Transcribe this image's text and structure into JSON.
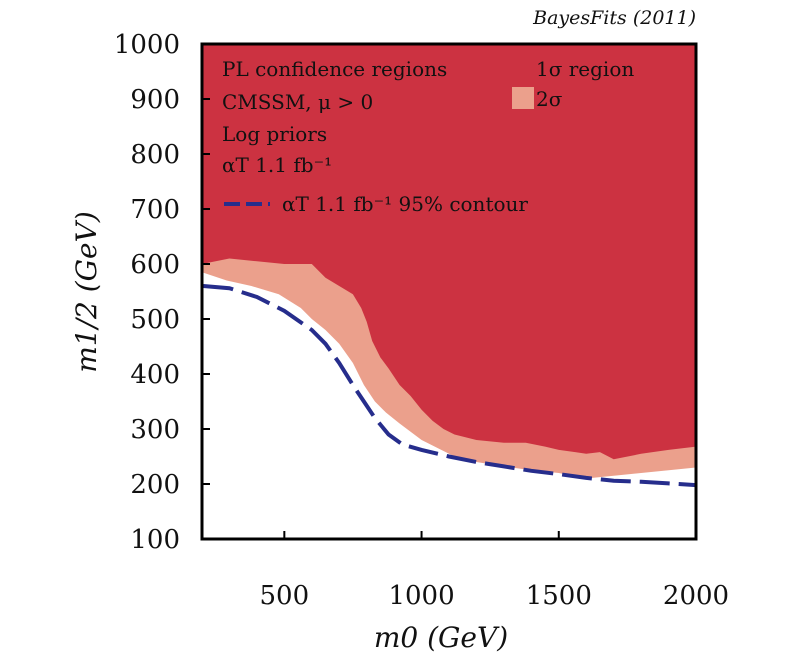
{
  "chart_data": {
    "type": "area",
    "title": "",
    "credit": "BayesFits (2011)",
    "xlabel": "m0 (GeV)",
    "ylabel": "m1/2 (GeV)",
    "xlim": [
      200,
      2000
    ],
    "ylim": [
      100,
      1000
    ],
    "x_ticks": [
      "500",
      "1000",
      "1500",
      "2000"
    ],
    "y_ticks": [
      "100",
      "200",
      "300",
      "400",
      "500",
      "600",
      "700",
      "800",
      "900",
      "1000"
    ],
    "grid": false,
    "legend_placement": "top-left",
    "legend": {
      "lines": [
        "PL confidence regions",
        "CMSSM, μ > 0",
        "Log priors",
        "αT 1.1 fb⁻¹"
      ],
      "contour_label": "αT 1.1 fb⁻¹ 95% contour",
      "one_sigma_label": "1σ region",
      "two_sigma_label": "2σ"
    },
    "series": [
      {
        "name": "2σ",
        "color": "#eba08c",
        "boundary": [
          [
            200,
            585
          ],
          [
            290,
            570
          ],
          [
            380,
            560
          ],
          [
            480,
            545
          ],
          [
            560,
            520
          ],
          [
            600,
            500
          ],
          [
            650,
            480
          ],
          [
            700,
            455
          ],
          [
            750,
            420
          ],
          [
            790,
            380
          ],
          [
            830,
            350
          ],
          [
            870,
            330
          ],
          [
            920,
            310
          ],
          [
            960,
            295
          ],
          [
            1000,
            280
          ],
          [
            1060,
            265
          ],
          [
            1120,
            250
          ],
          [
            1200,
            240
          ],
          [
            1300,
            232
          ],
          [
            1400,
            225
          ],
          [
            1500,
            220
          ],
          [
            1560,
            214
          ],
          [
            1600,
            210
          ],
          [
            1700,
            215
          ],
          [
            1800,
            220
          ],
          [
            1900,
            225
          ],
          [
            2000,
            230
          ]
        ]
      },
      {
        "name": "1σ region",
        "color": "#cc3241",
        "boundary": [
          [
            200,
            600
          ],
          [
            300,
            610
          ],
          [
            400,
            605
          ],
          [
            500,
            600
          ],
          [
            600,
            600
          ],
          [
            650,
            575
          ],
          [
            700,
            560
          ],
          [
            750,
            545
          ],
          [
            780,
            520
          ],
          [
            800,
            495
          ],
          [
            820,
            460
          ],
          [
            850,
            430
          ],
          [
            880,
            410
          ],
          [
            920,
            380
          ],
          [
            960,
            360
          ],
          [
            1000,
            335
          ],
          [
            1040,
            315
          ],
          [
            1080,
            300
          ],
          [
            1120,
            290
          ],
          [
            1200,
            280
          ],
          [
            1300,
            275
          ],
          [
            1380,
            275
          ],
          [
            1450,
            268
          ],
          [
            1500,
            262
          ],
          [
            1560,
            258
          ],
          [
            1600,
            255
          ],
          [
            1650,
            258
          ],
          [
            1700,
            245
          ],
          [
            1800,
            255
          ],
          [
            1900,
            262
          ],
          [
            2000,
            268
          ]
        ]
      },
      {
        "name": "αT 1.1 fb⁻¹ 95% contour",
        "color": "#262d8c",
        "x": [
          205,
          300,
          400,
          500,
          600,
          650,
          700,
          750,
          790,
          830,
          880,
          930,
          1000,
          1100,
          1200,
          1300,
          1400,
          1500,
          1600,
          1700,
          1800,
          1900,
          2000
        ],
        "y": [
          560,
          556,
          540,
          515,
          480,
          455,
          420,
          380,
          350,
          320,
          290,
          272,
          262,
          250,
          240,
          232,
          224,
          218,
          211,
          206,
          204,
          201,
          198
        ]
      }
    ]
  }
}
